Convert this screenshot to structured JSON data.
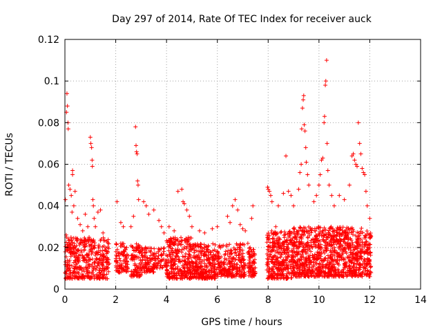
{
  "chart_data": {
    "type": "scatter",
    "title": "Day 297 of 2014, Rate Of TEC Index for receiver auck",
    "xlabel": "GPS time / hours",
    "ylabel": "ROTI / TECUs",
    "xlim": [
      0,
      14
    ],
    "ylim": [
      0,
      0.12
    ],
    "xticks": [
      0,
      2,
      4,
      6,
      8,
      10,
      12,
      14
    ],
    "xtick_labels": [
      "0",
      "2",
      "4",
      "6",
      "8",
      "10",
      "12",
      "14"
    ],
    "yticks": [
      0,
      0.02,
      0.04,
      0.06,
      0.08,
      0.1,
      0.12
    ],
    "ytick_labels": [
      "0",
      "0.02",
      "0.04",
      "0.06",
      "0.08",
      "0.1",
      "0.12"
    ],
    "grid": true,
    "marker": "+",
    "series": [
      {
        "name": "ROTI",
        "color": "#ff0000",
        "points": [
          [
            0.02,
            0.043
          ],
          [
            0.05,
            0.026
          ],
          [
            0.06,
            0.085
          ],
          [
            0.08,
            0.094
          ],
          [
            0.1,
            0.088
          ],
          [
            0.12,
            0.08
          ],
          [
            0.13,
            0.077
          ],
          [
            0.15,
            0.05
          ],
          [
            0.2,
            0.048
          ],
          [
            0.25,
            0.045
          ],
          [
            0.28,
            0.037
          ],
          [
            0.3,
            0.055
          ],
          [
            0.3,
            0.057
          ],
          [
            0.35,
            0.04
          ],
          [
            0.4,
            0.047
          ],
          [
            0.5,
            0.034
          ],
          [
            0.6,
            0.031
          ],
          [
            0.7,
            0.028
          ],
          [
            0.8,
            0.036
          ],
          [
            0.9,
            0.03
          ],
          [
            1.0,
            0.073
          ],
          [
            1.02,
            0.07
          ],
          [
            1.05,
            0.068
          ],
          [
            1.07,
            0.062
          ],
          [
            1.08,
            0.059
          ],
          [
            1.1,
            0.043
          ],
          [
            1.12,
            0.04
          ],
          [
            1.15,
            0.034
          ],
          [
            1.2,
            0.03
          ],
          [
            1.3,
            0.037
          ],
          [
            1.4,
            0.038
          ],
          [
            1.5,
            0.027
          ],
          [
            2.05,
            0.042
          ],
          [
            2.2,
            0.032
          ],
          [
            2.3,
            0.03
          ],
          [
            2.78,
            0.078
          ],
          [
            2.8,
            0.069
          ],
          [
            2.82,
            0.066
          ],
          [
            2.84,
            0.065
          ],
          [
            2.86,
            0.052
          ],
          [
            2.88,
            0.05
          ],
          [
            2.9,
            0.043
          ],
          [
            2.7,
            0.035
          ],
          [
            2.6,
            0.03
          ],
          [
            3.1,
            0.042
          ],
          [
            3.2,
            0.04
          ],
          [
            3.3,
            0.036
          ],
          [
            3.5,
            0.038
          ],
          [
            3.7,
            0.033
          ],
          [
            3.8,
            0.03
          ],
          [
            3.9,
            0.027
          ],
          [
            4.1,
            0.03
          ],
          [
            4.3,
            0.028
          ],
          [
            4.45,
            0.047
          ],
          [
            4.6,
            0.048
          ],
          [
            4.65,
            0.042
          ],
          [
            4.7,
            0.041
          ],
          [
            4.8,
            0.038
          ],
          [
            4.9,
            0.035
          ],
          [
            5.0,
            0.03
          ],
          [
            5.3,
            0.028
          ],
          [
            5.5,
            0.027
          ],
          [
            5.8,
            0.029
          ],
          [
            6.0,
            0.03
          ],
          [
            6.4,
            0.035
          ],
          [
            6.5,
            0.032
          ],
          [
            6.6,
            0.04
          ],
          [
            6.7,
            0.043
          ],
          [
            6.8,
            0.038
          ],
          [
            6.9,
            0.031
          ],
          [
            7.0,
            0.029
          ],
          [
            7.1,
            0.028
          ],
          [
            7.2,
            0.022
          ],
          [
            7.35,
            0.034
          ],
          [
            7.4,
            0.04
          ],
          [
            7.98,
            0.049
          ],
          [
            8.0,
            0.048
          ],
          [
            8.05,
            0.047
          ],
          [
            8.1,
            0.045
          ],
          [
            8.15,
            0.042
          ],
          [
            8.3,
            0.03
          ],
          [
            8.4,
            0.04
          ],
          [
            8.6,
            0.046
          ],
          [
            8.8,
            0.047
          ],
          [
            8.7,
            0.064
          ],
          [
            8.9,
            0.045
          ],
          [
            9.0,
            0.04
          ],
          [
            9.2,
            0.048
          ],
          [
            9.25,
            0.056
          ],
          [
            9.3,
            0.06
          ],
          [
            9.32,
            0.077
          ],
          [
            9.35,
            0.087
          ],
          [
            9.38,
            0.091
          ],
          [
            9.4,
            0.093
          ],
          [
            9.42,
            0.079
          ],
          [
            9.45,
            0.076
          ],
          [
            9.48,
            0.068
          ],
          [
            9.5,
            0.061
          ],
          [
            9.55,
            0.055
          ],
          [
            9.6,
            0.05
          ],
          [
            9.8,
            0.042
          ],
          [
            9.9,
            0.045
          ],
          [
            10.0,
            0.05
          ],
          [
            10.05,
            0.055
          ],
          [
            10.1,
            0.062
          ],
          [
            10.15,
            0.063
          ],
          [
            10.2,
            0.08
          ],
          [
            10.22,
            0.083
          ],
          [
            10.25,
            0.098
          ],
          [
            10.27,
            0.1
          ],
          [
            10.3,
            0.11
          ],
          [
            10.32,
            0.07
          ],
          [
            10.35,
            0.057
          ],
          [
            10.4,
            0.05
          ],
          [
            10.5,
            0.045
          ],
          [
            10.6,
            0.04
          ],
          [
            10.8,
            0.045
          ],
          [
            11.0,
            0.043
          ],
          [
            11.2,
            0.05
          ],
          [
            11.3,
            0.064
          ],
          [
            11.35,
            0.065
          ],
          [
            11.4,
            0.062
          ],
          [
            11.45,
            0.06
          ],
          [
            11.5,
            0.059
          ],
          [
            11.55,
            0.08
          ],
          [
            11.6,
            0.07
          ],
          [
            11.65,
            0.065
          ],
          [
            11.7,
            0.058
          ],
          [
            11.75,
            0.056
          ],
          [
            11.8,
            0.055
          ],
          [
            11.85,
            0.047
          ],
          [
            11.9,
            0.04
          ],
          [
            12.0,
            0.034
          ]
        ],
        "dense_clusters": [
          {
            "x_range": [
              0.0,
              1.75
            ],
            "y_range": [
              0.005,
              0.025
            ],
            "count": 420
          },
          {
            "x_range": [
              2.0,
              2.5
            ],
            "y_range": [
              0.008,
              0.022
            ],
            "count": 90
          },
          {
            "x_range": [
              2.6,
              3.0
            ],
            "y_range": [
              0.006,
              0.022
            ],
            "count": 90
          },
          {
            "x_range": [
              3.0,
              3.5
            ],
            "y_range": [
              0.008,
              0.02
            ],
            "count": 90
          },
          {
            "x_range": [
              3.5,
              4.0
            ],
            "y_range": [
              0.01,
              0.02
            ],
            "count": 60
          },
          {
            "x_range": [
              4.0,
              5.0
            ],
            "y_range": [
              0.005,
              0.025
            ],
            "count": 260
          },
          {
            "x_range": [
              5.0,
              6.0
            ],
            "y_range": [
              0.005,
              0.022
            ],
            "count": 260
          },
          {
            "x_range": [
              6.0,
              7.1
            ],
            "y_range": [
              0.006,
              0.022
            ],
            "count": 240
          },
          {
            "x_range": [
              7.2,
              7.5
            ],
            "y_range": [
              0.006,
              0.02
            ],
            "count": 80
          },
          {
            "x_range": [
              7.95,
              9.0
            ],
            "y_range": [
              0.005,
              0.028
            ],
            "count": 330
          },
          {
            "x_range": [
              9.0,
              10.0
            ],
            "y_range": [
              0.006,
              0.03
            ],
            "count": 330
          },
          {
            "x_range": [
              10.0,
              11.0
            ],
            "y_range": [
              0.006,
              0.03
            ],
            "count": 330
          },
          {
            "x_range": [
              11.0,
              12.05
            ],
            "y_range": [
              0.006,
              0.03
            ],
            "count": 330
          }
        ]
      }
    ]
  }
}
